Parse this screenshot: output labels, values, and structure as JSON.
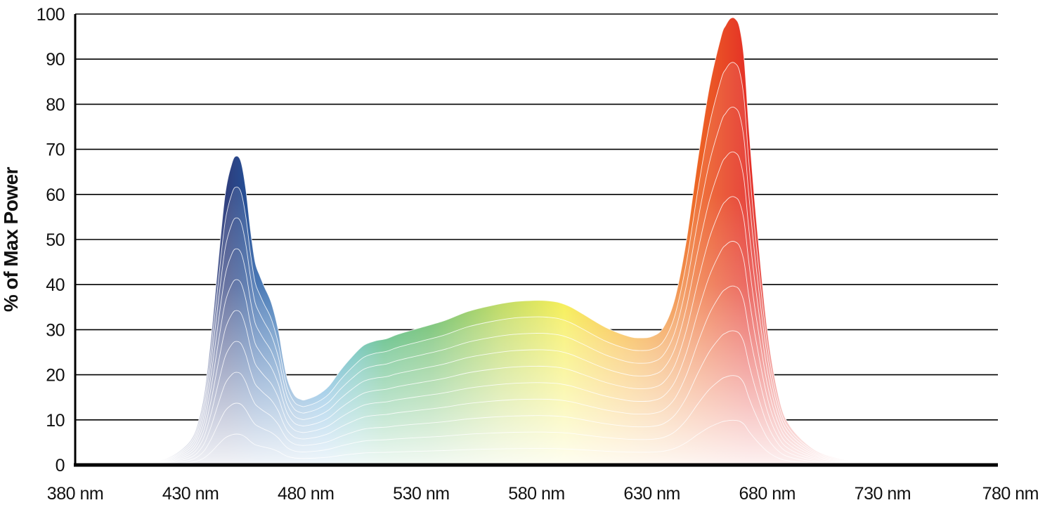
{
  "chart_data": {
    "type": "area",
    "title": "",
    "xlabel": "",
    "ylabel": "% of Max Power",
    "xlim": [
      380,
      780
    ],
    "ylim": [
      0,
      100
    ],
    "x_ticks": [
      "380 nm",
      "430 nm",
      "480 nm",
      "530 nm",
      "580 nm",
      "630 nm",
      "680 nm",
      "730 nm",
      "780 nm"
    ],
    "y_ticks": [
      "0",
      "10",
      "20",
      "30",
      "40",
      "50",
      "60",
      "70",
      "80",
      "90",
      "100"
    ],
    "grid": true,
    "legend": "none",
    "dimming_levels": [
      1.0,
      0.9,
      0.8,
      0.7,
      0.6,
      0.5,
      0.4,
      0.3,
      0.2,
      0.1
    ],
    "series": [
      {
        "x": [
          380,
          400,
          410,
          415,
          420,
          425,
          430,
          433,
          436,
          439,
          442,
          445,
          448,
          450,
          452,
          454,
          456,
          458,
          460,
          462,
          465,
          468,
          470,
          472,
          475,
          478,
          480,
          485,
          490,
          495,
          500,
          505,
          510,
          515,
          520,
          530,
          540,
          550,
          560,
          570,
          580,
          585,
          590,
          595,
          600,
          610,
          620,
          625,
          630,
          635,
          640,
          645,
          650,
          655,
          660,
          662,
          664,
          666,
          668,
          670,
          672,
          675,
          680,
          685,
          690,
          700,
          710,
          720,
          730,
          740,
          750,
          760,
          780
        ],
        "y": [
          0,
          0,
          0.2,
          0.6,
          1.5,
          3,
          5.5,
          9,
          16,
          29,
          45,
          60,
          67,
          68.5,
          67,
          61,
          52,
          45,
          42,
          39.5,
          36,
          30,
          24,
          19,
          15.5,
          14.5,
          14.5,
          15.5,
          17.5,
          21,
          24,
          26.5,
          27.5,
          28,
          29,
          30.5,
          32,
          34,
          35.3,
          36.2,
          36.5,
          36.4,
          36,
          35,
          33.5,
          30.5,
          28.5,
          28.2,
          28.5,
          30.5,
          37,
          50,
          68,
          84,
          95,
          97.5,
          99,
          99,
          97,
          90,
          75,
          56,
          30,
          15,
          8.5,
          3.5,
          1.5,
          0.6,
          0.2,
          0,
          0,
          0,
          0
        ]
      }
    ]
  }
}
